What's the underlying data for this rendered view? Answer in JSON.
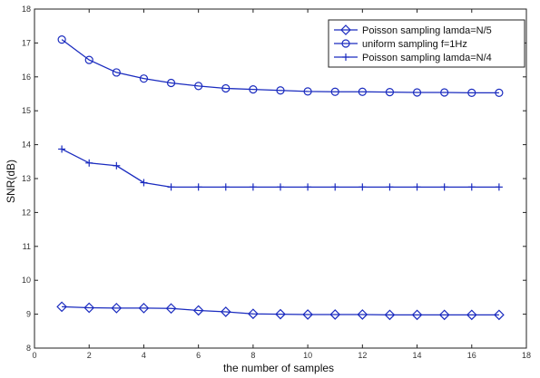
{
  "chart_data": {
    "type": "line",
    "title": "",
    "xlabel": "the number of samples",
    "ylabel": "SNR(dB)",
    "xlim": [
      0,
      18
    ],
    "ylim": [
      8,
      18
    ],
    "xticks": [
      0,
      2,
      4,
      6,
      8,
      10,
      12,
      14,
      16,
      18
    ],
    "yticks": [
      8,
      9,
      10,
      11,
      12,
      13,
      14,
      15,
      16,
      17,
      18
    ],
    "grid": false,
    "legend_position": "top-right",
    "line_color": "#1a2bbf",
    "series": [
      {
        "name": "Poisson sampling lamda=N/5",
        "marker": "diamond",
        "x": [
          1,
          2,
          3,
          4,
          5,
          6,
          7,
          8,
          9,
          10,
          11,
          12,
          13,
          14,
          15,
          16,
          17
        ],
        "values": [
          9.22,
          9.19,
          9.18,
          9.18,
          9.17,
          9.11,
          9.07,
          9.01,
          9.0,
          8.99,
          8.99,
          8.99,
          8.98,
          8.98,
          8.98,
          8.98,
          8.98
        ]
      },
      {
        "name": "uniform sampling f=1Hz",
        "marker": "circle",
        "x": [
          1,
          2,
          3,
          4,
          5,
          6,
          7,
          8,
          9,
          10,
          11,
          12,
          13,
          14,
          15,
          16,
          17
        ],
        "values": [
          17.1,
          16.5,
          16.13,
          15.95,
          15.82,
          15.73,
          15.66,
          15.63,
          15.6,
          15.57,
          15.56,
          15.56,
          15.55,
          15.54,
          15.54,
          15.53,
          15.53
        ]
      },
      {
        "name": "Poisson sampling lamda=N/4",
        "marker": "plus",
        "x": [
          1,
          2,
          3,
          4,
          5,
          6,
          7,
          8,
          9,
          10,
          11,
          12,
          13,
          14,
          15,
          16,
          17
        ],
        "values": [
          13.87,
          13.46,
          13.38,
          12.88,
          12.75,
          12.75,
          12.75,
          12.75,
          12.75,
          12.75,
          12.75,
          12.75,
          12.75,
          12.75,
          12.75,
          12.75,
          12.75
        ]
      }
    ]
  }
}
